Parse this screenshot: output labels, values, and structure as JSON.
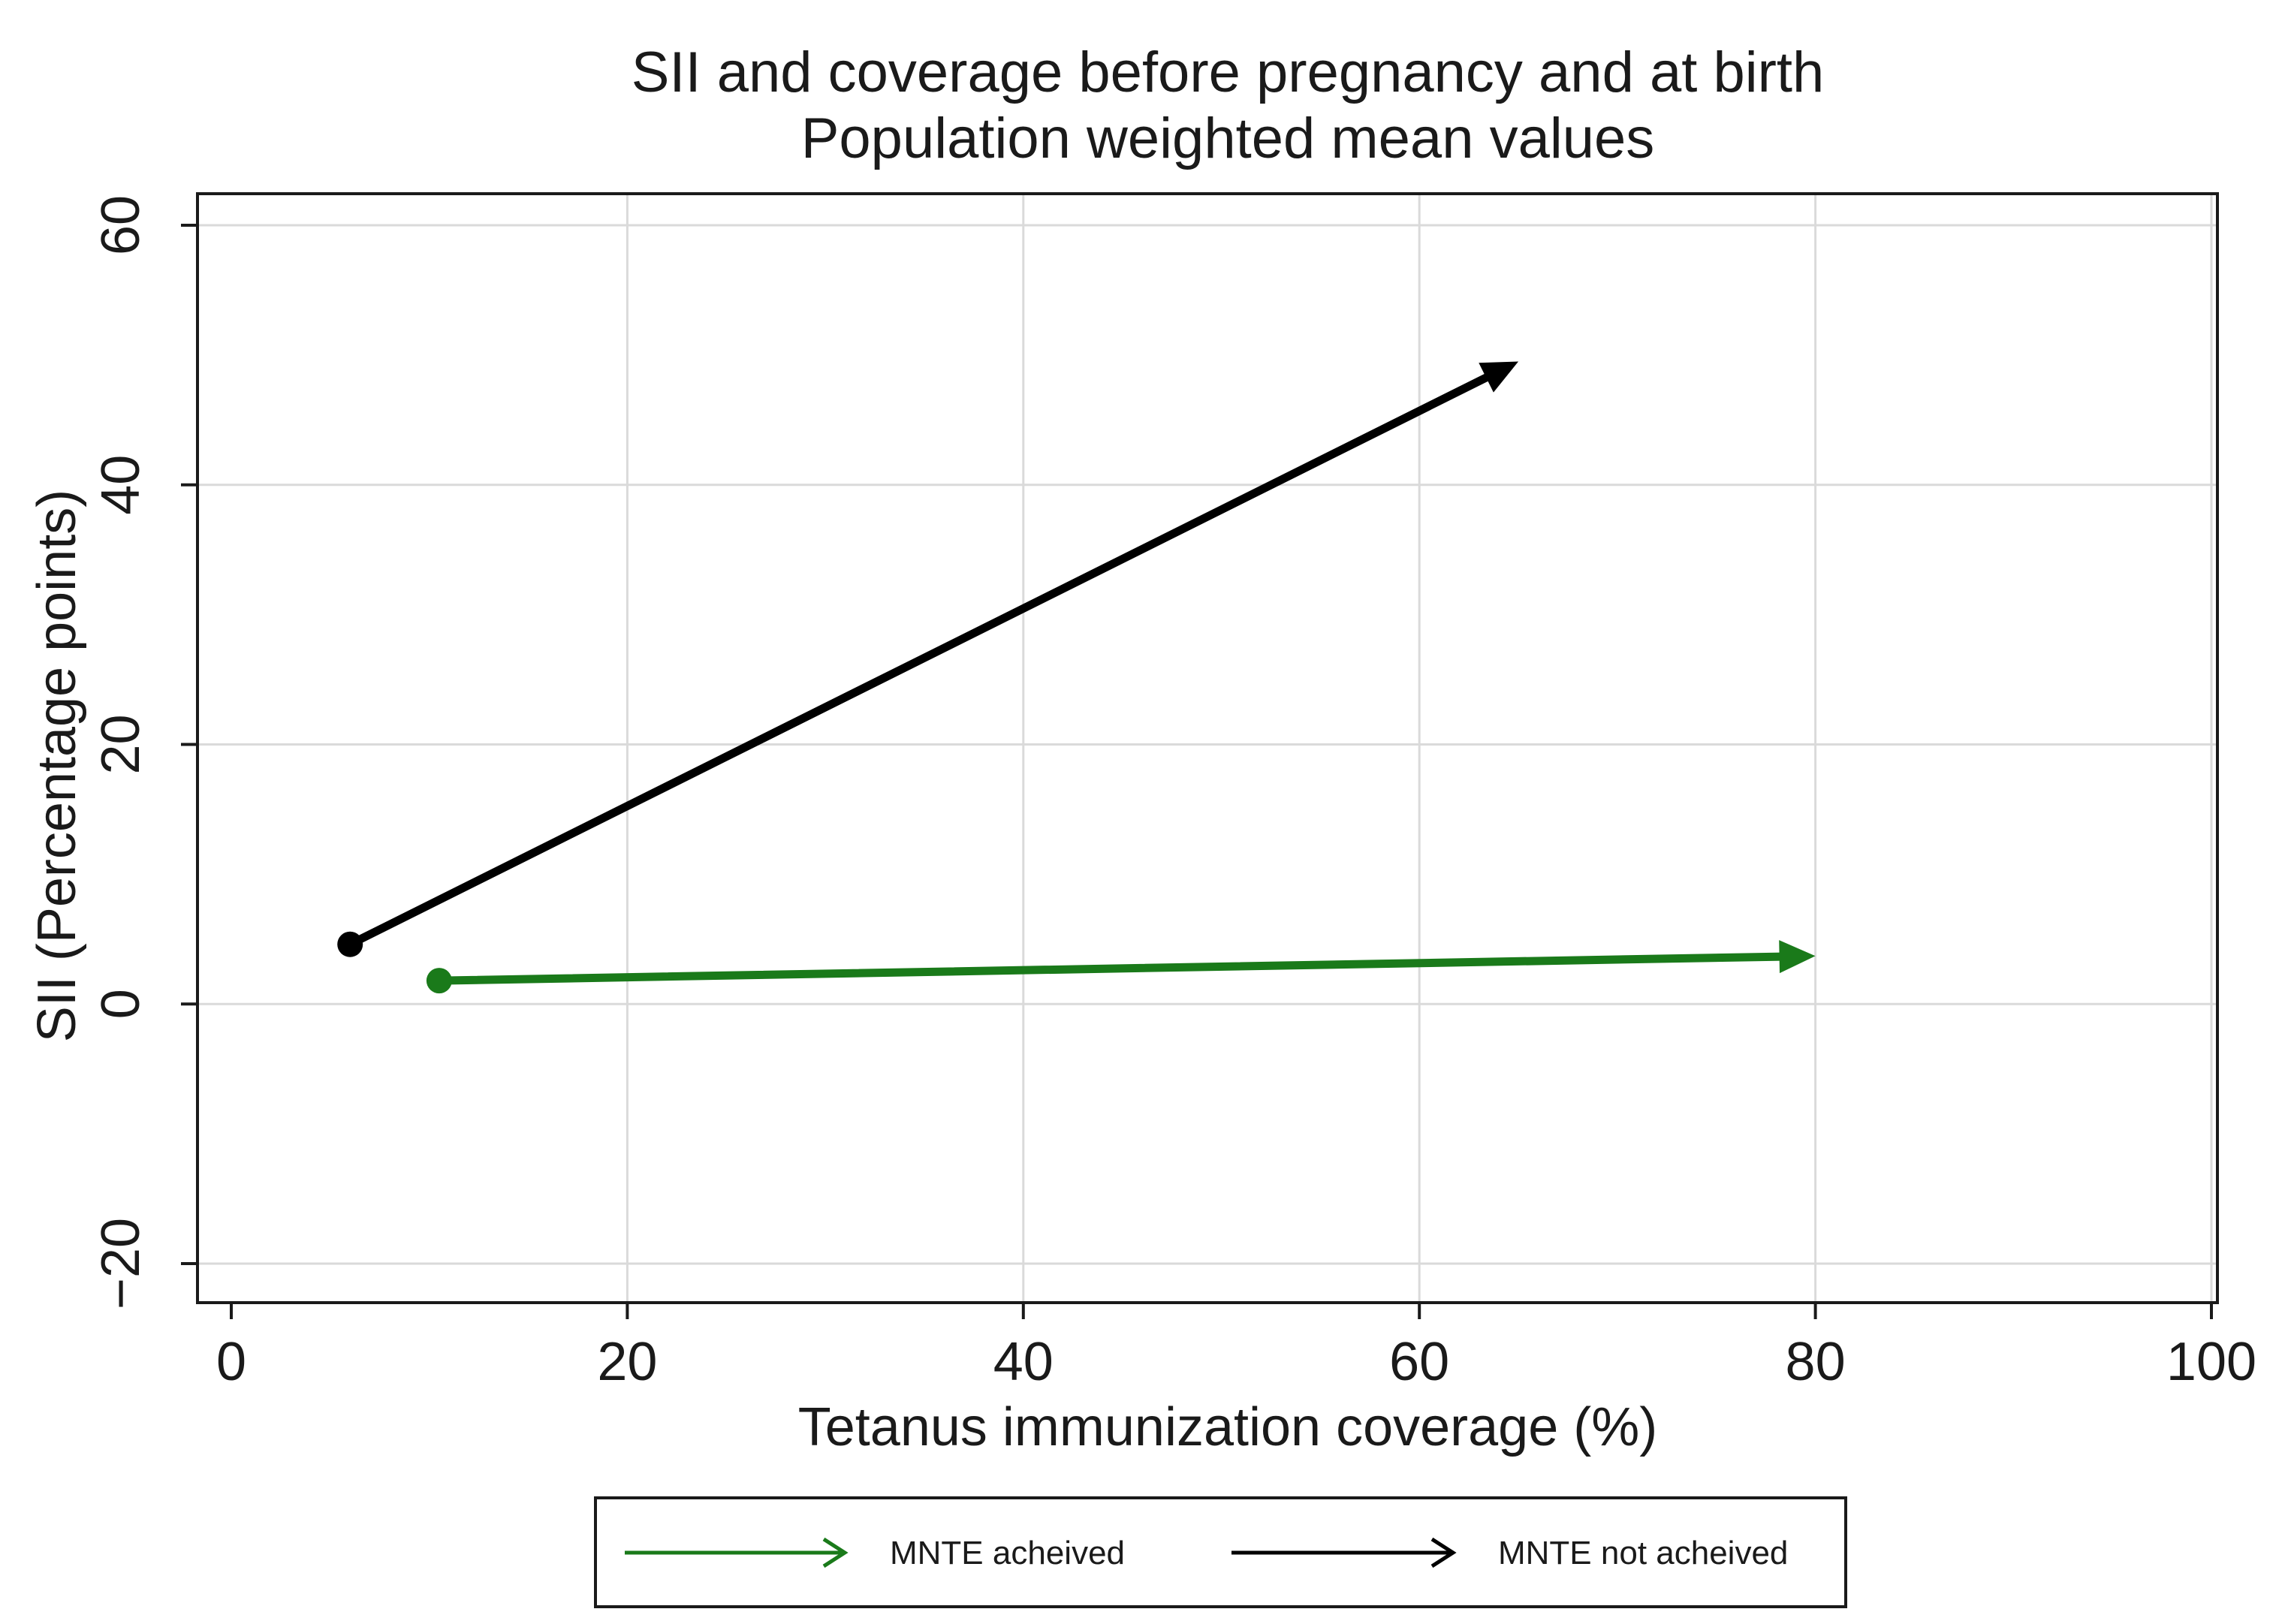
{
  "chart_data": {
    "type": "line",
    "title": "SII and coverage before pregnancy and at birth",
    "subtitle": "Population weighted mean values",
    "xlabel": "Tetanus immunization coverage (%)",
    "ylabel": "SII (Percentage points)",
    "xlim": [
      0,
      100
    ],
    "ylim": [
      -20,
      60
    ],
    "x_ticks": [
      0,
      20,
      40,
      60,
      80,
      100
    ],
    "y_ticks": [
      -20,
      0,
      20,
      40,
      60
    ],
    "grid": true,
    "legend_position": "bottom",
    "series": [
      {
        "name": "MNTE acheived",
        "color": "#1a7a1a",
        "start": {
          "x": 10.5,
          "y": 1.8
        },
        "end": {
          "x": 80,
          "y": 3.7
        }
      },
      {
        "name": "MNTE not acheived",
        "color": "#000000",
        "start": {
          "x": 6,
          "y": 4.6
        },
        "end": {
          "x": 65,
          "y": 49.5
        }
      }
    ]
  }
}
